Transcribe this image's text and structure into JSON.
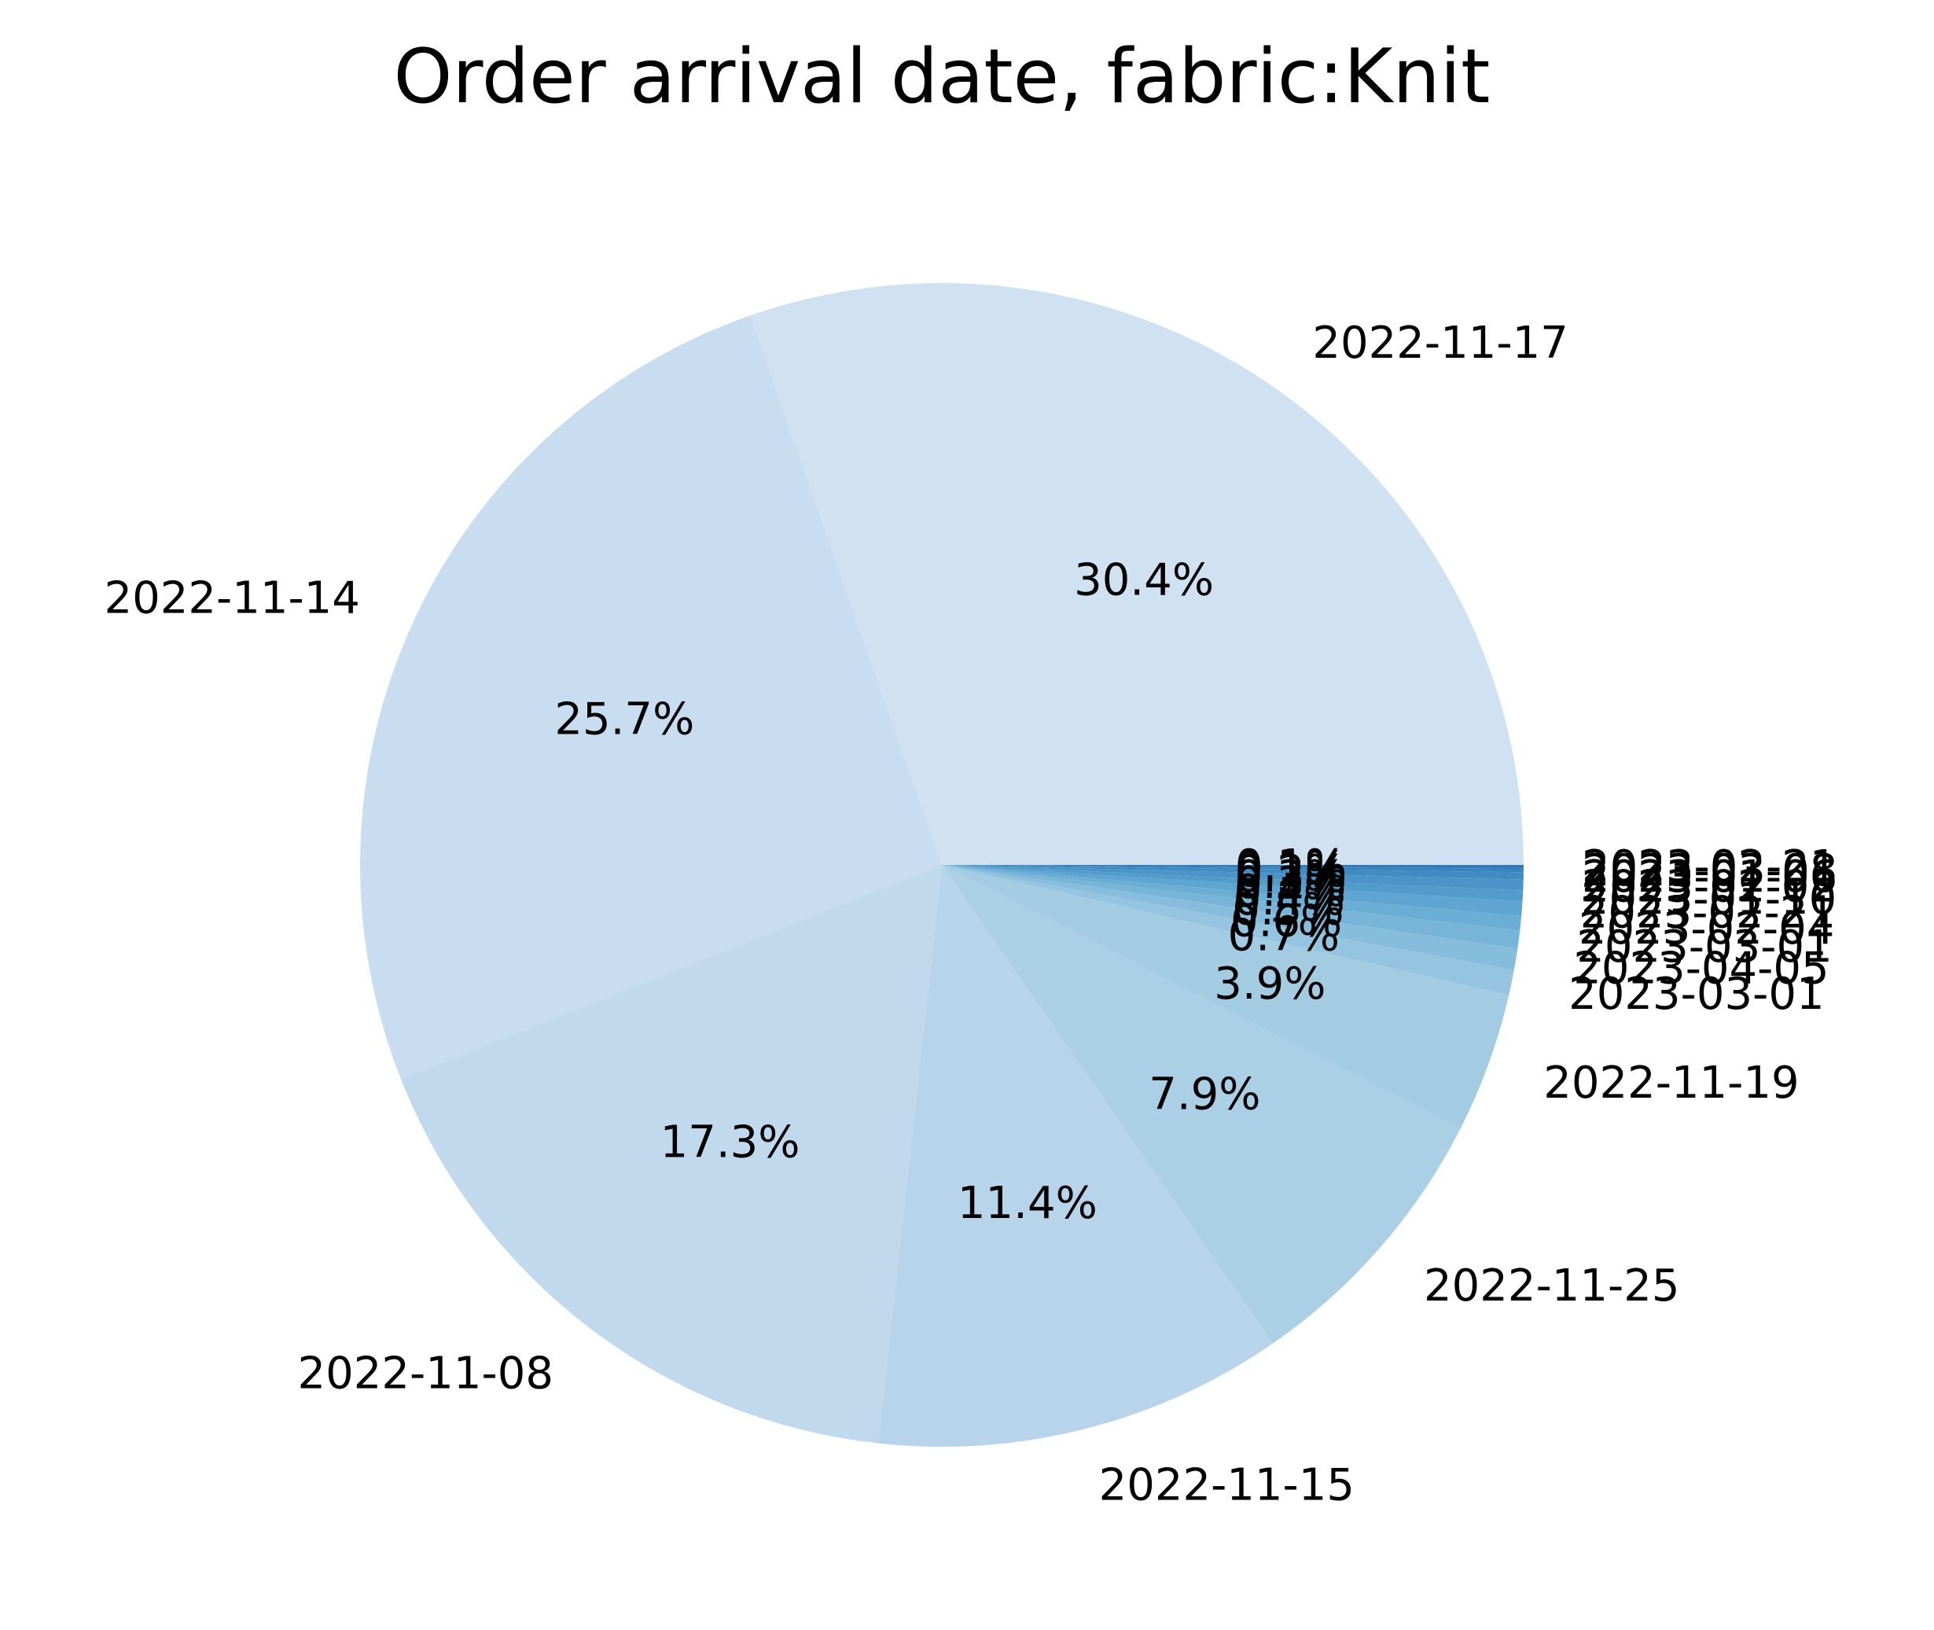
{
  "chart_data": {
    "type": "pie",
    "title": "Order arrival date, fabric:Knit",
    "slices": [
      {
        "label": "2022-11-17",
        "value": 30.4,
        "pct_label": "30.4%",
        "color": "#d0e1f2"
      },
      {
        "label": "2022-11-14",
        "value": 25.7,
        "pct_label": "25.7%",
        "color": "#c9ddf0"
      },
      {
        "label": "2022-11-08",
        "value": 17.3,
        "pct_label": "17.3%",
        "color": "#c1d9ed"
      },
      {
        "label": "2022-11-15",
        "value": 11.4,
        "pct_label": "11.4%",
        "color": "#b7d4ea"
      },
      {
        "label": "2022-11-25",
        "value": 7.9,
        "pct_label": "7.9%",
        "color": "#abd0e6"
      },
      {
        "label": "2022-11-19",
        "value": 3.9,
        "pct_label": "3.9%",
        "color": "#a3cce3"
      },
      {
        "label": "2023-03-01",
        "value": 0.7,
        "pct_label": "0.7%",
        "color": "#94c4df"
      },
      {
        "label": "2023-04-05",
        "value": 0.6,
        "pct_label": "0.6%",
        "color": "#86bcdc"
      },
      {
        "label": "2023-03-01",
        "value": 0.5,
        "pct_label": "0.5%",
        "color": "#78b4d8"
      },
      {
        "label": "2023-02-04",
        "value": 0.4,
        "pct_label": "0.4%",
        "color": "#6aaed6"
      },
      {
        "label": "2023-02-21",
        "value": 0.4,
        "pct_label": "0.4%",
        "color": "#5ea5d1"
      },
      {
        "label": "2023-01-10",
        "value": 0.3,
        "pct_label": "0.3%",
        "color": "#529ccc"
      },
      {
        "label": "2023-02-02",
        "value": 0.3,
        "pct_label": "0.3%",
        "color": "#4a94c8"
      },
      {
        "label": "2023-01-06",
        "value": 0.2,
        "pct_label": "0.2%",
        "color": "#418bc3"
      },
      {
        "label": "2023-03-08",
        "value": 0.1,
        "pct_label": "0.1%",
        "color": "#3a83be"
      },
      {
        "label": "2023-02-21",
        "value": 0.1,
        "pct_label": "0.1%",
        "color": "#337ab7"
      }
    ]
  }
}
